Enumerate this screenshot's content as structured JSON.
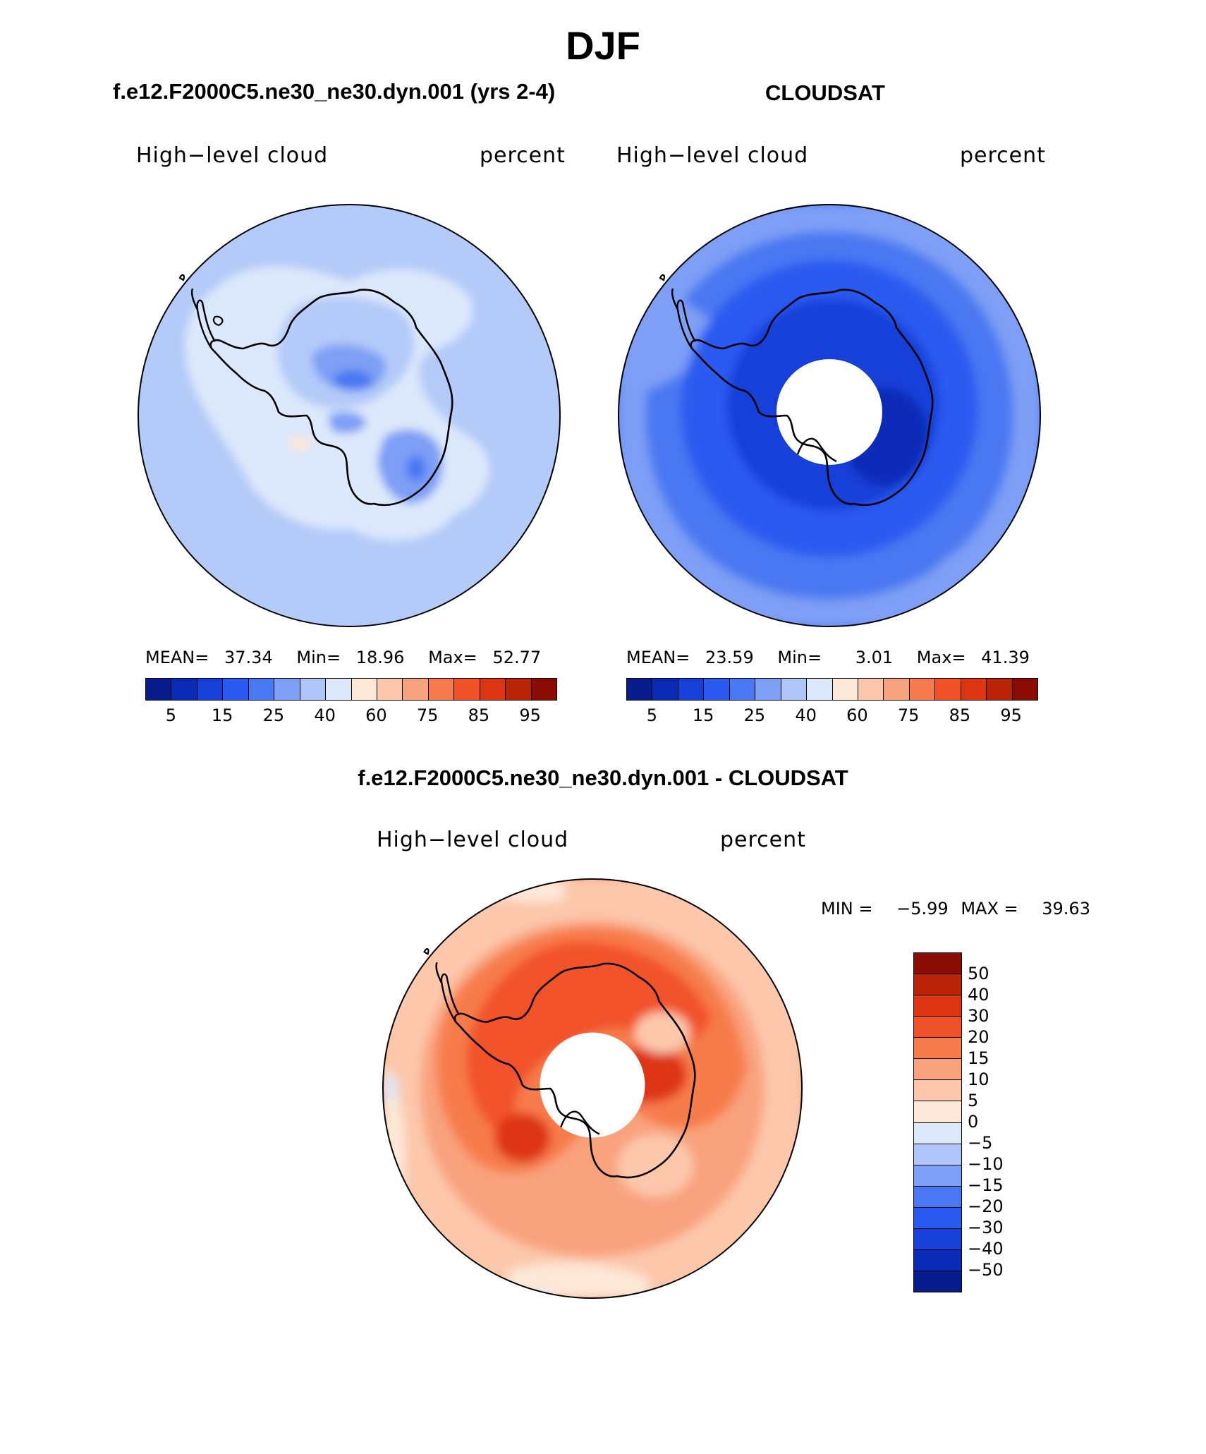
{
  "season": "DJF",
  "panels": {
    "model": {
      "title": "f.e12.F2000C5.ne30_ne30.dyn.001 (yrs 2-4)",
      "variable": "High−level cloud",
      "units": "percent",
      "mean_label": "MEAN=",
      "mean": "37.34",
      "min_label": "Min=",
      "min": "18.96",
      "max_label": "Max=",
      "max": "52.77"
    },
    "obs": {
      "title": "CLOUDSAT",
      "variable": "High−level cloud",
      "units": "percent",
      "mean_label": "MEAN=",
      "mean": "23.59",
      "min_label": "Min=",
      "min": "3.01",
      "max_label": "Max=",
      "max": "41.39"
    },
    "diff": {
      "title": "f.e12.F2000C5.ne30_ne30.dyn.001 - CLOUDSAT",
      "variable": "High−level cloud",
      "units": "percent",
      "min_label": "MIN =",
      "min": "−5.99",
      "max_label": "MAX =",
      "max": "39.63"
    }
  },
  "colorbar_abs": {
    "tick_labels": [
      "5",
      "15",
      "25",
      "40",
      "60",
      "75",
      "85",
      "95"
    ],
    "colors": [
      "#081b8c",
      "#0a2ab8",
      "#1640d8",
      "#2a5af0",
      "#4a78f2",
      "#7e9ff5",
      "#b0c6f8",
      "#dce8fb",
      "#fde7d6",
      "#fcc7ab",
      "#f9a27e",
      "#f77b4c",
      "#f2522a",
      "#dd3412",
      "#bb2309",
      "#8b0b05"
    ]
  },
  "colorbar_diff": {
    "tick_labels": [
      "50",
      "40",
      "30",
      "20",
      "15",
      "10",
      "5",
      "0",
      "−5",
      "−10",
      "−15",
      "−20",
      "−30",
      "−40",
      "−50"
    ],
    "colors": [
      "#8b0b05",
      "#bb2309",
      "#dd3412",
      "#f2522a",
      "#f77b4c",
      "#f9a27e",
      "#fcc7ab",
      "#fde7d6",
      "#dce8fb",
      "#b0c6f8",
      "#7e9ff5",
      "#4a78f2",
      "#2a5af0",
      "#1640d8",
      "#0a2ab8",
      "#081b8c"
    ]
  },
  "map_fills": {
    "model_base": "#b4caf8",
    "model_light": "#dce8fb",
    "model_mid": "#7e9ff5",
    "model_dark": "#4a78f2",
    "obs_base": "#4a78f2",
    "obs_outer": "#7e9ff5",
    "obs_mid": "#2a5af0",
    "obs_dark": "#1640d8",
    "obs_darkest": "#0a2ab8",
    "diff_base": "#f9a27e",
    "diff_outer": "#fcc7ab",
    "diff_mid": "#f77b4c",
    "diff_dark": "#f2522a",
    "diff_darkest": "#dd3412",
    "diff_pale": "#fde7d6",
    "diff_neg": "#dce8fb"
  }
}
